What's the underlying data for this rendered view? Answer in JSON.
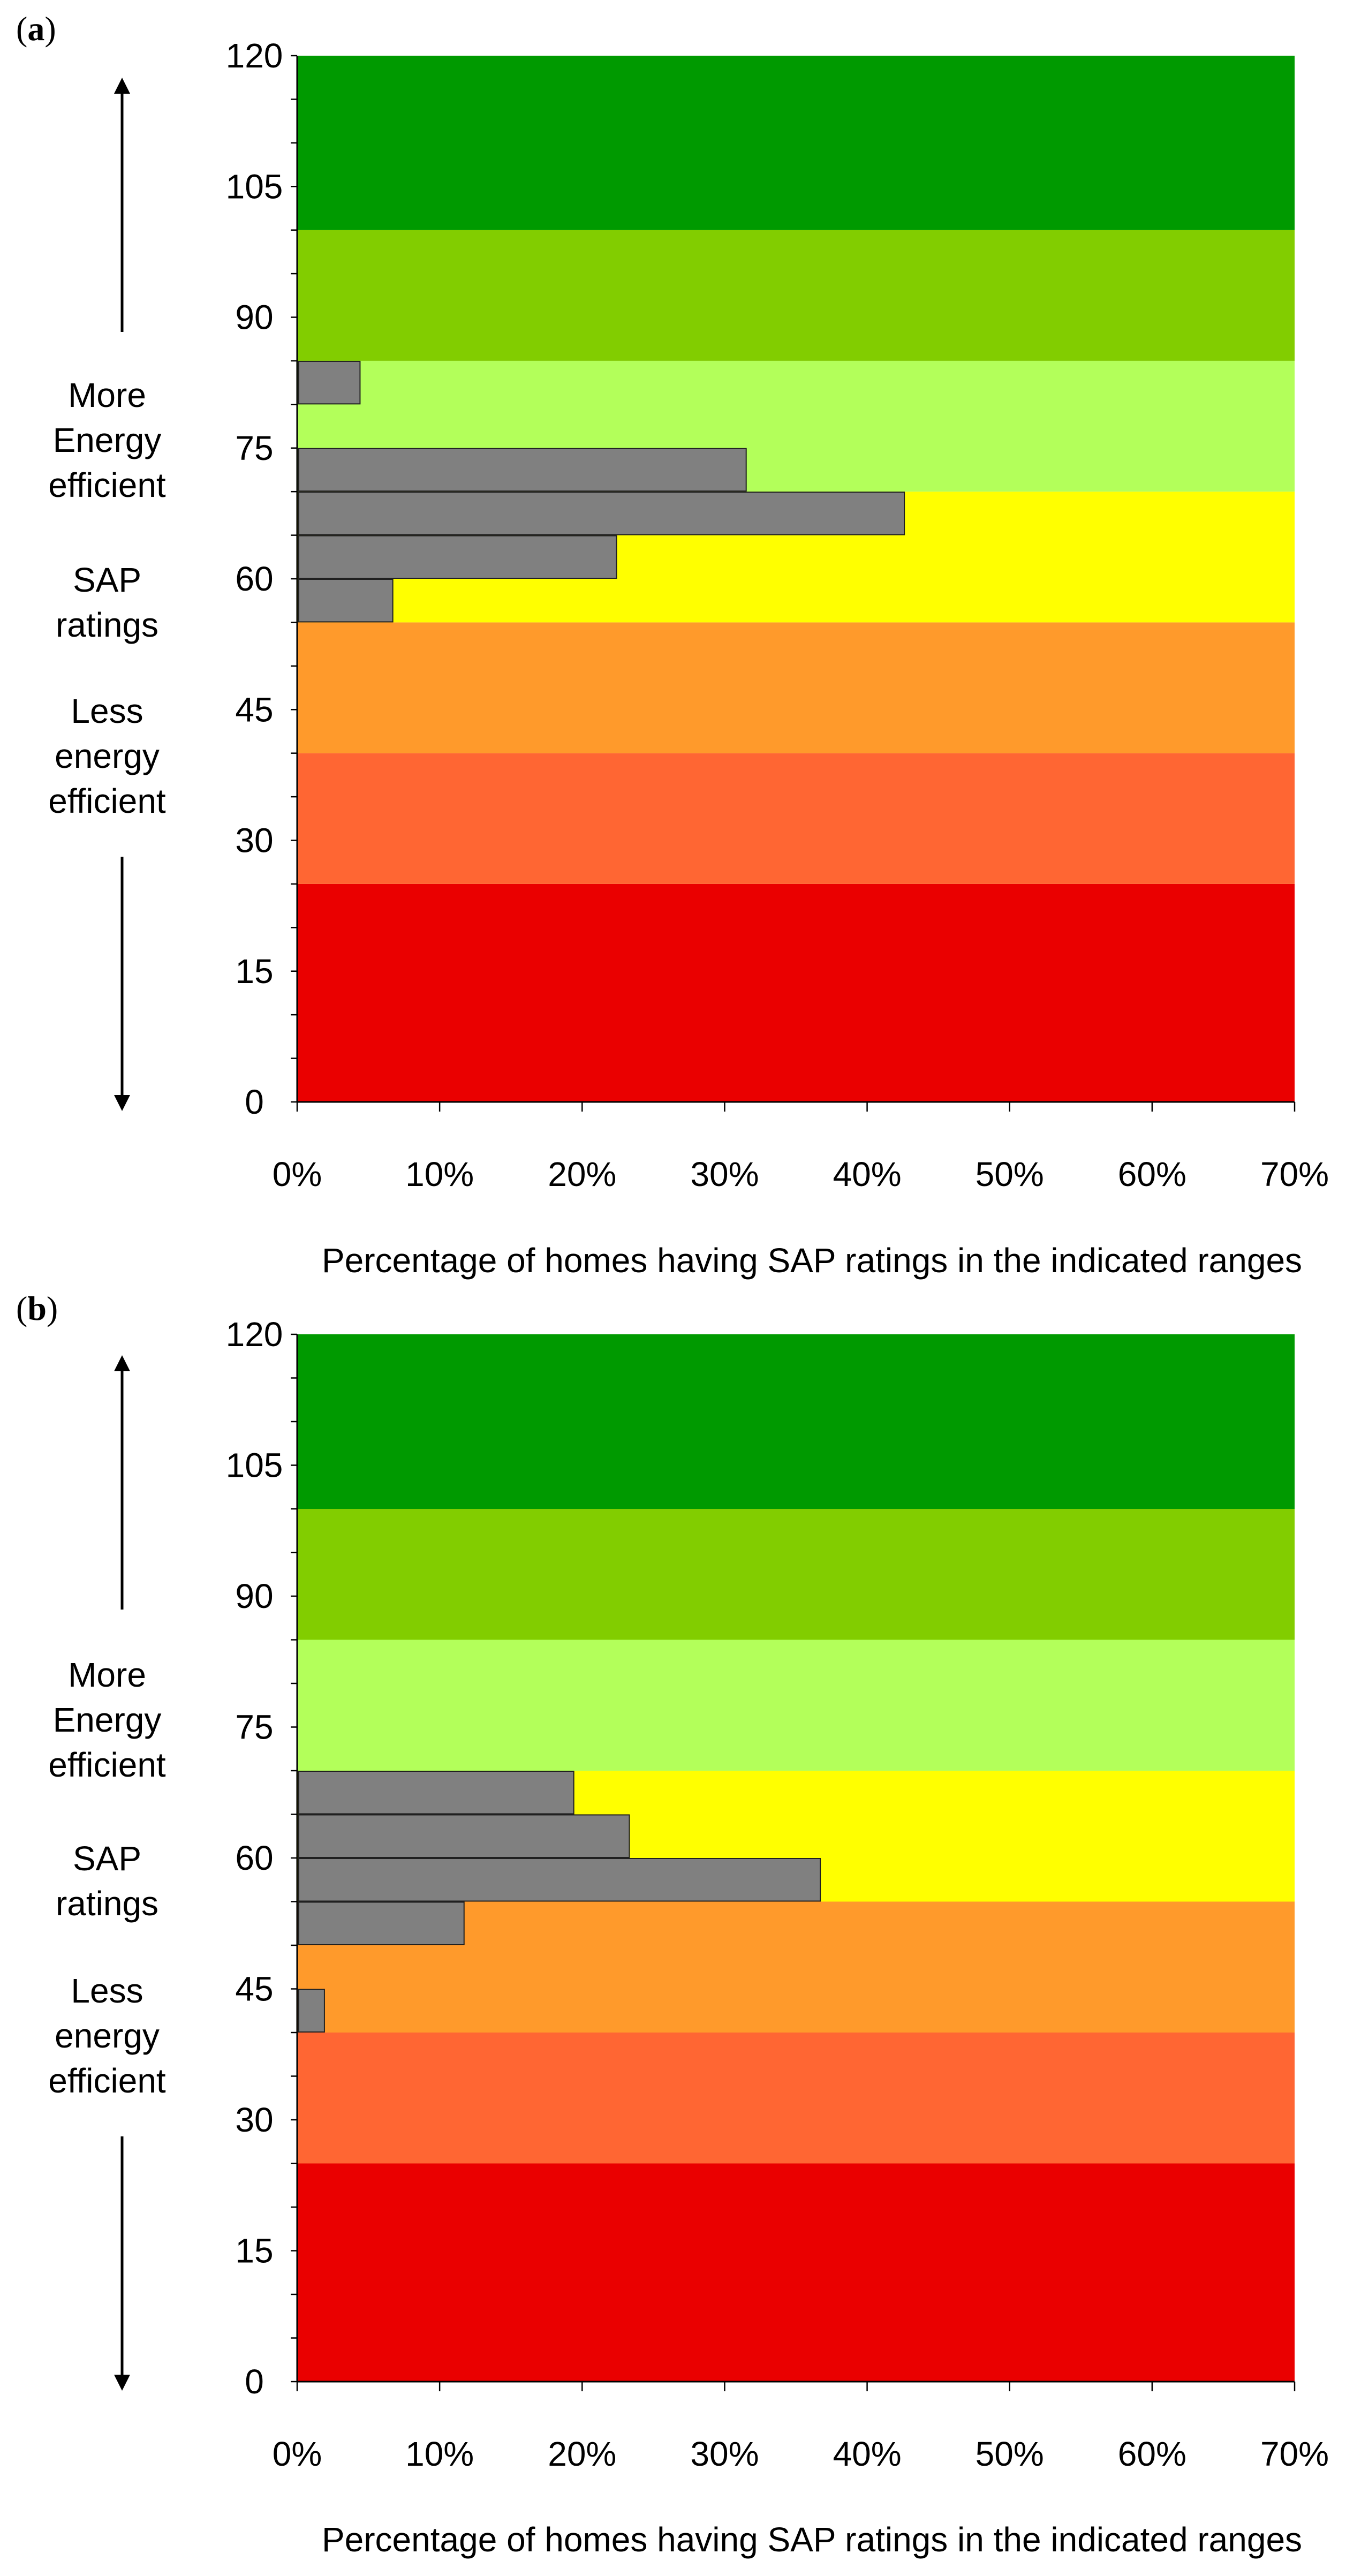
{
  "figure": {
    "side_annotation": {
      "more": [
        "More",
        "Energy",
        "efficient"
      ],
      "middle": [
        "SAP",
        "ratings"
      ],
      "less": [
        "Less",
        "energy",
        "efficient"
      ]
    }
  },
  "chart_data": [
    {
      "type": "bar",
      "orientation": "horizontal",
      "panel_label": "a",
      "title": "",
      "xlabel": "Percentage of homes having SAP ratings in the indicated ranges",
      "ylabel": "SAP ratings",
      "xlim": [
        0,
        70
      ],
      "ylim": [
        0,
        120
      ],
      "x_ticks": [
        "0%",
        "10%",
        "20%",
        "30%",
        "40%",
        "50%",
        "60%",
        "70%"
      ],
      "y_ticks": [
        "0",
        "15",
        "30",
        "45",
        "60",
        "75",
        "90",
        "105",
        "120"
      ],
      "bands": [
        {
          "from": 0,
          "to": 25,
          "color": "#ea0000"
        },
        {
          "from": 25,
          "to": 40,
          "color": "#ff6633"
        },
        {
          "from": 40,
          "to": 55,
          "color": "#ff9a2b"
        },
        {
          "from": 55,
          "to": 70,
          "color": "#ffff00"
        },
        {
          "from": 70,
          "to": 85,
          "color": "#b3ff5a"
        },
        {
          "from": 85,
          "to": 100,
          "color": "#82cd00"
        },
        {
          "from": 100,
          "to": 120,
          "color": "#009a00"
        }
      ],
      "bar_color": "#808080",
      "bars": [
        {
          "from": 55,
          "to": 60,
          "value": 6.6
        },
        {
          "from": 60,
          "to": 65,
          "value": 22.3
        },
        {
          "from": 65,
          "to": 70,
          "value": 42.5
        },
        {
          "from": 70,
          "to": 75,
          "value": 31.4
        },
        {
          "from": 80,
          "to": 85,
          "value": 4.3
        }
      ]
    },
    {
      "type": "bar",
      "orientation": "horizontal",
      "panel_label": "b",
      "title": "",
      "xlabel": "Percentage of homes having SAP ratings in the indicated ranges",
      "ylabel": "SAP ratings",
      "xlim": [
        0,
        70
      ],
      "ylim": [
        0,
        120
      ],
      "x_ticks": [
        "0%",
        "10%",
        "20%",
        "30%",
        "40%",
        "50%",
        "60%",
        "70%"
      ],
      "y_ticks": [
        "0",
        "15",
        "30",
        "45",
        "60",
        "75",
        "90",
        "105",
        "120"
      ],
      "bands": [
        {
          "from": 0,
          "to": 25,
          "color": "#ea0000"
        },
        {
          "from": 25,
          "to": 40,
          "color": "#ff6633"
        },
        {
          "from": 40,
          "to": 55,
          "color": "#ff9a2b"
        },
        {
          "from": 55,
          "to": 70,
          "color": "#ffff00"
        },
        {
          "from": 70,
          "to": 85,
          "color": "#b3ff5a"
        },
        {
          "from": 85,
          "to": 100,
          "color": "#82cd00"
        },
        {
          "from": 100,
          "to": 120,
          "color": "#009a00"
        }
      ],
      "bar_color": "#808080",
      "bars": [
        {
          "from": 40,
          "to": 45,
          "value": 1.8
        },
        {
          "from": 50,
          "to": 55,
          "value": 11.6
        },
        {
          "from": 55,
          "to": 60,
          "value": 36.6
        },
        {
          "from": 60,
          "to": 65,
          "value": 23.2
        },
        {
          "from": 65,
          "to": 70,
          "value": 19.3
        }
      ]
    }
  ]
}
